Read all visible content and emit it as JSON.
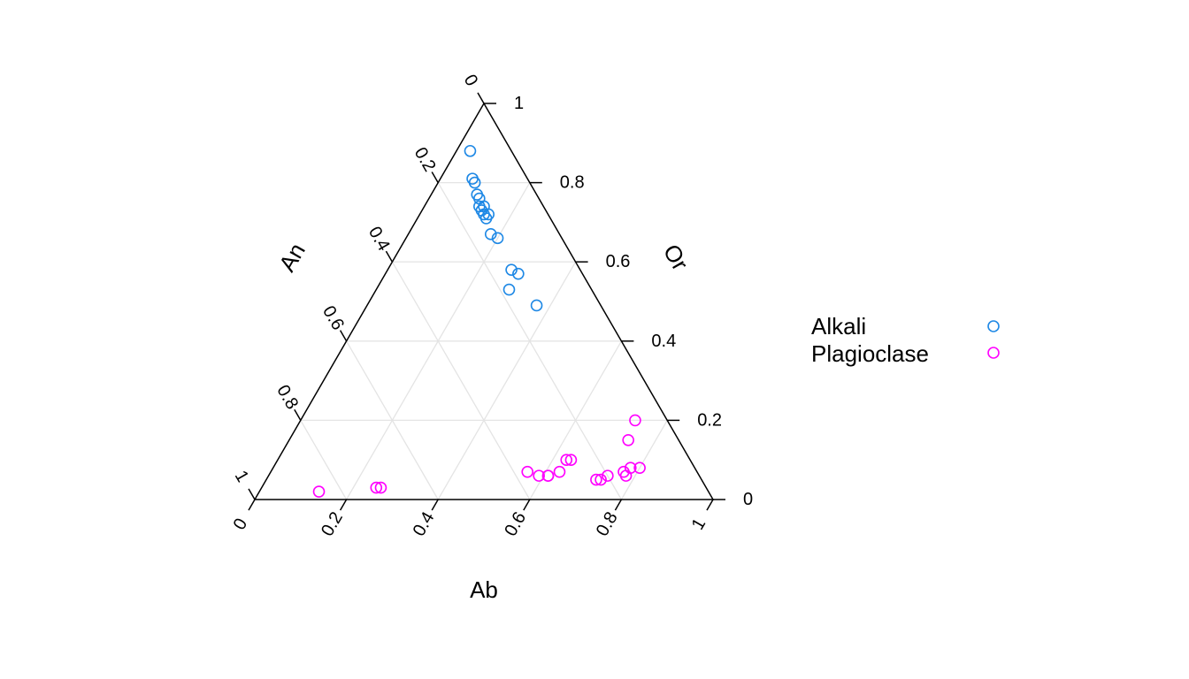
{
  "chart_data": {
    "type": "scatter",
    "subtype": "ternary",
    "axes": {
      "right": {
        "label": "Or",
        "ticks": [
          "0",
          "0.2",
          "0.4",
          "0.6",
          "0.8",
          "1"
        ]
      },
      "left": {
        "label": "An",
        "ticks": [
          "0",
          "0.2",
          "0.4",
          "0.6",
          "0.8",
          "1"
        ]
      },
      "bottom": {
        "label": "Ab",
        "ticks": [
          "0",
          "0.2",
          "0.4",
          "0.6",
          "0.8",
          "1"
        ]
      }
    },
    "grid": true,
    "legend_position": "right",
    "series": [
      {
        "name": "Alkali",
        "color": "#1e88e5",
        "points": [
          {
            "Or": 0.88,
            "An": 0.09,
            "Ab": 0.03
          },
          {
            "Or": 0.81,
            "An": 0.12,
            "Ab": 0.07
          },
          {
            "Or": 0.8,
            "An": 0.12,
            "Ab": 0.08
          },
          {
            "Or": 0.77,
            "An": 0.13,
            "Ab": 0.1
          },
          {
            "Or": 0.76,
            "An": 0.13,
            "Ab": 0.11
          },
          {
            "Or": 0.74,
            "An": 0.14,
            "Ab": 0.12
          },
          {
            "Or": 0.74,
            "An": 0.13,
            "Ab": 0.13
          },
          {
            "Or": 0.73,
            "An": 0.14,
            "Ab": 0.13
          },
          {
            "Or": 0.72,
            "An": 0.14,
            "Ab": 0.14
          },
          {
            "Or": 0.72,
            "An": 0.13,
            "Ab": 0.15
          },
          {
            "Or": 0.71,
            "An": 0.14,
            "Ab": 0.15
          },
          {
            "Or": 0.67,
            "An": 0.15,
            "Ab": 0.18
          },
          {
            "Or": 0.66,
            "An": 0.14,
            "Ab": 0.2
          },
          {
            "Or": 0.58,
            "An": 0.15,
            "Ab": 0.27
          },
          {
            "Or": 0.57,
            "An": 0.14,
            "Ab": 0.29
          },
          {
            "Or": 0.53,
            "An": 0.18,
            "Ab": 0.29
          },
          {
            "Or": 0.49,
            "An": 0.14,
            "Ab": 0.37
          }
        ]
      },
      {
        "name": "Plagioclase",
        "color": "#ff00ff",
        "points": [
          {
            "Or": 0.2,
            "An": 0.07,
            "Ab": 0.73
          },
          {
            "Or": 0.15,
            "An": 0.11,
            "Ab": 0.74
          },
          {
            "Or": 0.08,
            "An": 0.12,
            "Ab": 0.8
          },
          {
            "Or": 0.08,
            "An": 0.14,
            "Ab": 0.78
          },
          {
            "Or": 0.07,
            "An": 0.16,
            "Ab": 0.77
          },
          {
            "Or": 0.06,
            "An": 0.16,
            "Ab": 0.78
          },
          {
            "Or": 0.06,
            "An": 0.2,
            "Ab": 0.74
          },
          {
            "Or": 0.05,
            "An": 0.22,
            "Ab": 0.73
          },
          {
            "Or": 0.05,
            "An": 0.23,
            "Ab": 0.72
          },
          {
            "Or": 0.1,
            "An": 0.26,
            "Ab": 0.64
          },
          {
            "Or": 0.1,
            "An": 0.27,
            "Ab": 0.63
          },
          {
            "Or": 0.07,
            "An": 0.3,
            "Ab": 0.63
          },
          {
            "Or": 0.06,
            "An": 0.33,
            "Ab": 0.61
          },
          {
            "Or": 0.06,
            "An": 0.33,
            "Ab": 0.61
          },
          {
            "Or": 0.06,
            "An": 0.35,
            "Ab": 0.59
          },
          {
            "Or": 0.07,
            "An": 0.37,
            "Ab": 0.56
          },
          {
            "Or": 0.03,
            "An": 0.71,
            "Ab": 0.26
          },
          {
            "Or": 0.03,
            "An": 0.72,
            "Ab": 0.25
          },
          {
            "Or": 0.02,
            "An": 0.85,
            "Ab": 0.13
          }
        ]
      }
    ]
  }
}
